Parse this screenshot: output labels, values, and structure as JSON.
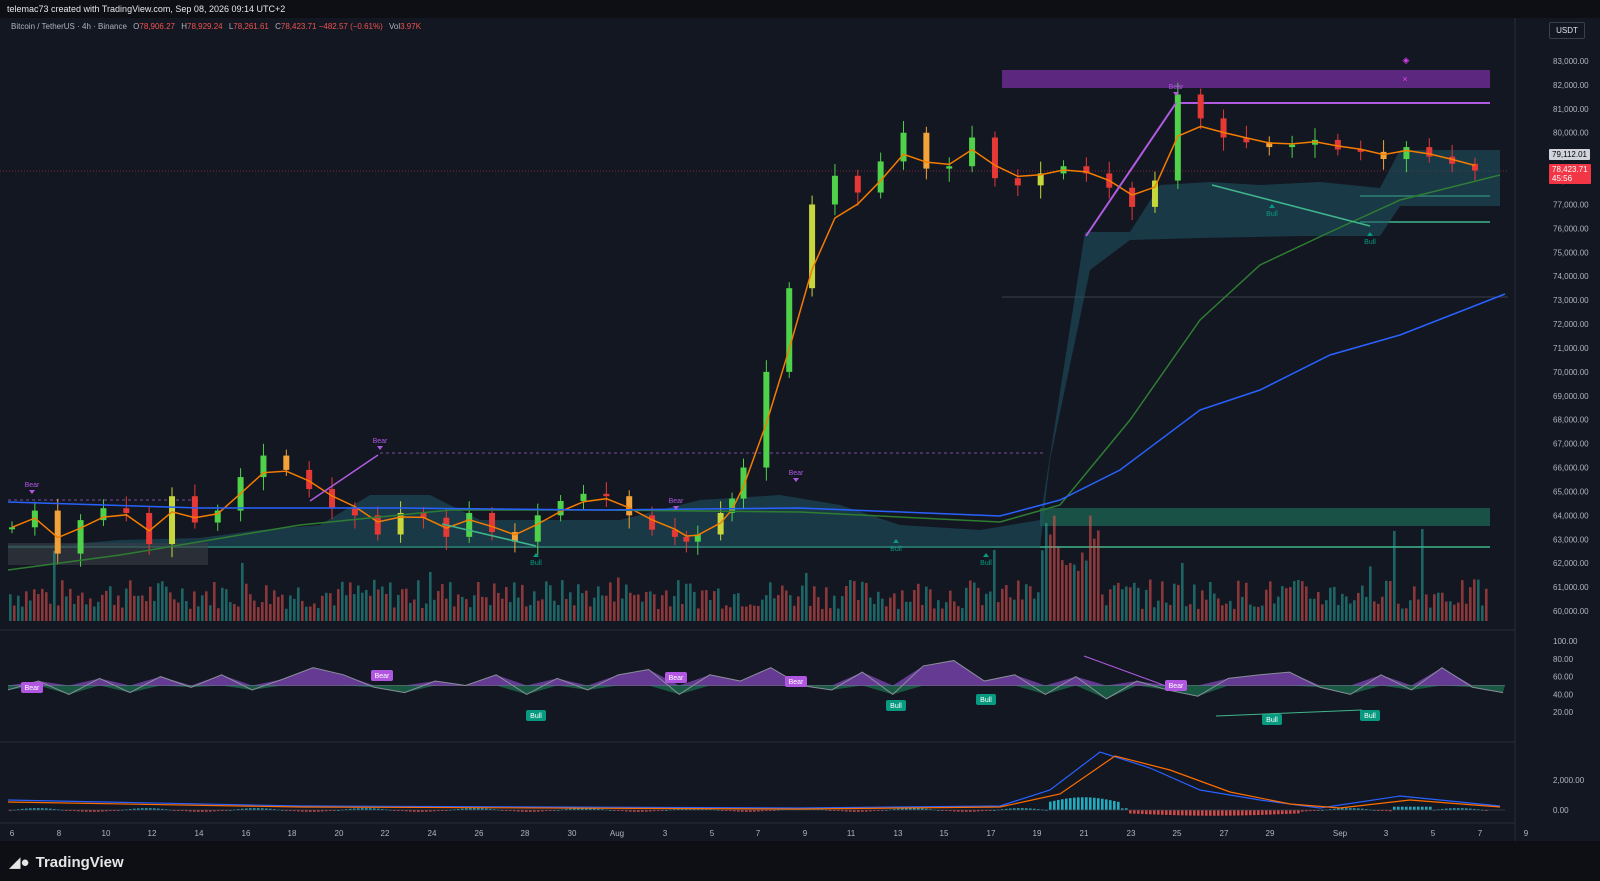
{
  "header": {
    "caption": "telemac73 created with TradingView.com, Sep 08, 2026 09:14 UTC+2"
  },
  "legend": {
    "symbol": "Bitcoin / TetherUS · 4h · Binance",
    "open_label": "O",
    "open": "78,906.27",
    "high_label": "H",
    "high": "78,929.24",
    "low_label": "L",
    "low": "78,261.61",
    "close_label": "C",
    "close": "78,423.71",
    "change": "−482.57 (−0.61%)",
    "vol_label": "Vol",
    "vol": "3.97K"
  },
  "currency": "USDT",
  "price_tags": {
    "marker": "79,112.01",
    "last": "78,423.71",
    "countdown": "45:56"
  },
  "colors": {
    "up": "#26a69a",
    "down": "#ef5350",
    "bull_label": "#089981",
    "bear_label": "#b056e0",
    "ema_orange": "#f57c00",
    "ma_green": "#2e7d32",
    "ma_blue": "#2962ff",
    "cloud": "#1f5566",
    "zone_purple": "#6a2a8f",
    "zone_green": "#1e6b55"
  },
  "brand": {
    "logo": "TradingView",
    "logo_icon": "tradingview-logo-icon"
  },
  "chart_data": [
    {
      "type": "candlestick",
      "title": "",
      "ylim": [
        59000,
        84000
      ],
      "y_ticks": [
        "83,000.00",
        "82,000.00",
        "81,000.00",
        "80,000.00",
        "79,000.00",
        "78,000.00",
        "77,000.00",
        "76,000.00",
        "75,000.00",
        "74,000.00",
        "73,000.00",
        "72,000.00",
        "71,000.00",
        "70,000.00",
        "69,000.00",
        "68,000.00",
        "67,000.00",
        "66,000.00",
        "65,000.00",
        "64,000.00",
        "63,000.00",
        "62,000.00",
        "61,000.00",
        "60,000.00"
      ],
      "x_ticks": [
        "6",
        "8",
        "10",
        "12",
        "14",
        "16",
        "18",
        "20",
        "22",
        "24",
        "26",
        "28",
        "30",
        "Aug",
        "3",
        "5",
        "7",
        "9",
        "11",
        "13",
        "15",
        "17",
        "19",
        "21",
        "23",
        "25",
        "27",
        "29",
        "Sep",
        "3",
        "5",
        "7",
        "9"
      ],
      "close_path_day_index": [
        0,
        2,
        4,
        6,
        8,
        10,
        12,
        14,
        16,
        18,
        20,
        22,
        24,
        26,
        28,
        30,
        32,
        34,
        36,
        38,
        40,
        42,
        44,
        46,
        48,
        50,
        52,
        54,
        56,
        58,
        59,
        60,
        62,
        63,
        64,
        66,
        68,
        70,
        72,
        74,
        76,
        78,
        80,
        82,
        84,
        86,
        88,
        90,
        92,
        94,
        96,
        98,
        100,
        102,
        104,
        106,
        108,
        110,
        112,
        114,
        116,
        118,
        120,
        122,
        124,
        126,
        128
      ],
      "close_values": [
        63500,
        64200,
        62400,
        63800,
        64300,
        64100,
        62800,
        64800,
        63700,
        64200,
        65600,
        66500,
        65900,
        65100,
        64300,
        64000,
        63200,
        64100,
        63900,
        63100,
        64100,
        63300,
        62900,
        64000,
        64600,
        64900,
        64800,
        64000,
        63400,
        63100,
        62900,
        63200,
        64100,
        64700,
        66000,
        70000,
        73500,
        77000,
        78200,
        77500,
        78800,
        80000,
        78500,
        78600,
        79800,
        78100,
        77800,
        78300,
        78600,
        78300,
        77700,
        76900,
        78000,
        81600,
        80600,
        79800,
        79600,
        79400,
        79500,
        79700,
        79300,
        79200,
        78900,
        79400,
        79000,
        78700,
        78420
      ],
      "annotations": [
        {
          "label": "Bear",
          "type": "divergence"
        },
        {
          "label": "Bull",
          "type": "divergence"
        }
      ],
      "series": [
        {
          "type": "ema"
        },
        {
          "type": "ma"
        },
        {
          "type": "ma"
        }
      ]
    },
    {
      "type": "area",
      "ylim": [
        0,
        100
      ],
      "y_ticks": [
        "100.00",
        "80.00",
        "60.00",
        "40.00",
        "20.00"
      ],
      "baseline": 50,
      "labels": [
        "Bear",
        "Bull"
      ]
    },
    {
      "type": "bar",
      "y_ticks": [
        "2,000.00",
        "0.00"
      ]
    }
  ]
}
